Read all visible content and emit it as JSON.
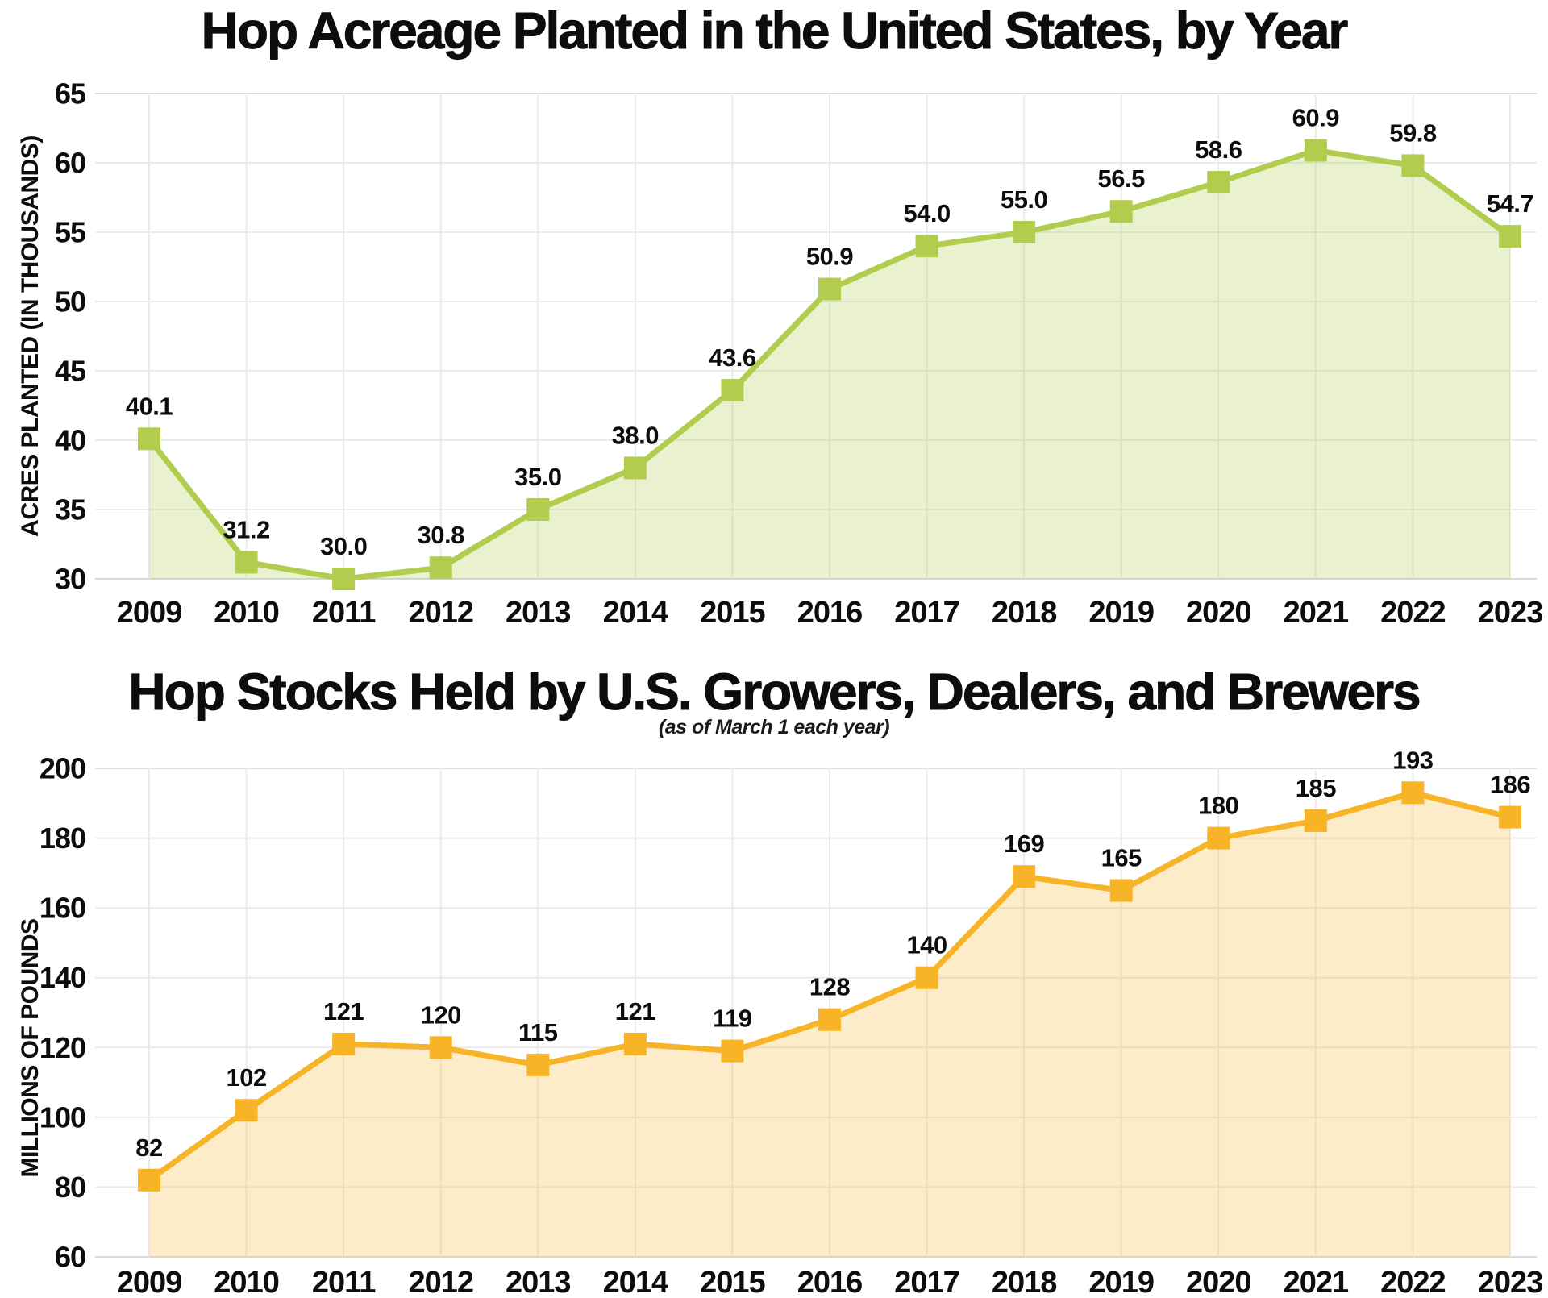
{
  "page": {
    "background_color": "#ffffff",
    "text_color": "#0d0d0d",
    "grid_color": "#ebebeb",
    "grid_edge_color": "#d9d9d9"
  },
  "chart_data": [
    {
      "type": "area",
      "title": "Hop Acreage Planted in the United States, by Year",
      "subtitle": "",
      "ylabel": "ACRES PLANTED (IN THOUSANDS)",
      "xlabel": "",
      "categories": [
        "2009",
        "2010",
        "2011",
        "2012",
        "2013",
        "2014",
        "2015",
        "2016",
        "2017",
        "2018",
        "2019",
        "2020",
        "2021",
        "2022",
        "2023"
      ],
      "values": [
        40.1,
        31.2,
        30.0,
        30.8,
        35.0,
        38.0,
        43.6,
        50.9,
        54.0,
        55.0,
        56.5,
        58.6,
        60.9,
        59.8,
        54.7
      ],
      "labels": [
        "40.1",
        "31.2",
        "30.0",
        "30.8",
        "35.0",
        "38.0",
        "43.6",
        "50.9",
        "54.0",
        "55.0",
        "56.5",
        "58.6",
        "60.9",
        "59.8",
        "54.7"
      ],
      "ylim": [
        30,
        65
      ],
      "ytick_step": 5,
      "line_color": "#b2cc4e",
      "fill_color": "#b2cc4e",
      "fill_opacity": 0.28,
      "marker": "square",
      "grid": true,
      "legend": "none"
    },
    {
      "type": "area",
      "title": "Hop Stocks Held by U.S. Growers, Dealers, and Brewers",
      "subtitle": "(as of March 1 each year)",
      "ylabel": "MILLIONS OF POUNDS",
      "xlabel": "",
      "categories": [
        "2009",
        "2010",
        "2011",
        "2012",
        "2013",
        "2014",
        "2015",
        "2016",
        "2017",
        "2018",
        "2019",
        "2020",
        "2021",
        "2022",
        "2023"
      ],
      "values": [
        82,
        102,
        121,
        120,
        115,
        121,
        119,
        128,
        140,
        169,
        165,
        180,
        185,
        193,
        186
      ],
      "labels": [
        "82",
        "102",
        "121",
        "120",
        "115",
        "121",
        "119",
        "128",
        "140",
        "169",
        "165",
        "180",
        "185",
        "193",
        "186"
      ],
      "ylim": [
        60,
        200
      ],
      "ytick_step": 20,
      "line_color": "#f6b426",
      "fill_color": "#f6b426",
      "fill_opacity": 0.25,
      "marker": "square",
      "grid": true,
      "legend": "none"
    }
  ]
}
